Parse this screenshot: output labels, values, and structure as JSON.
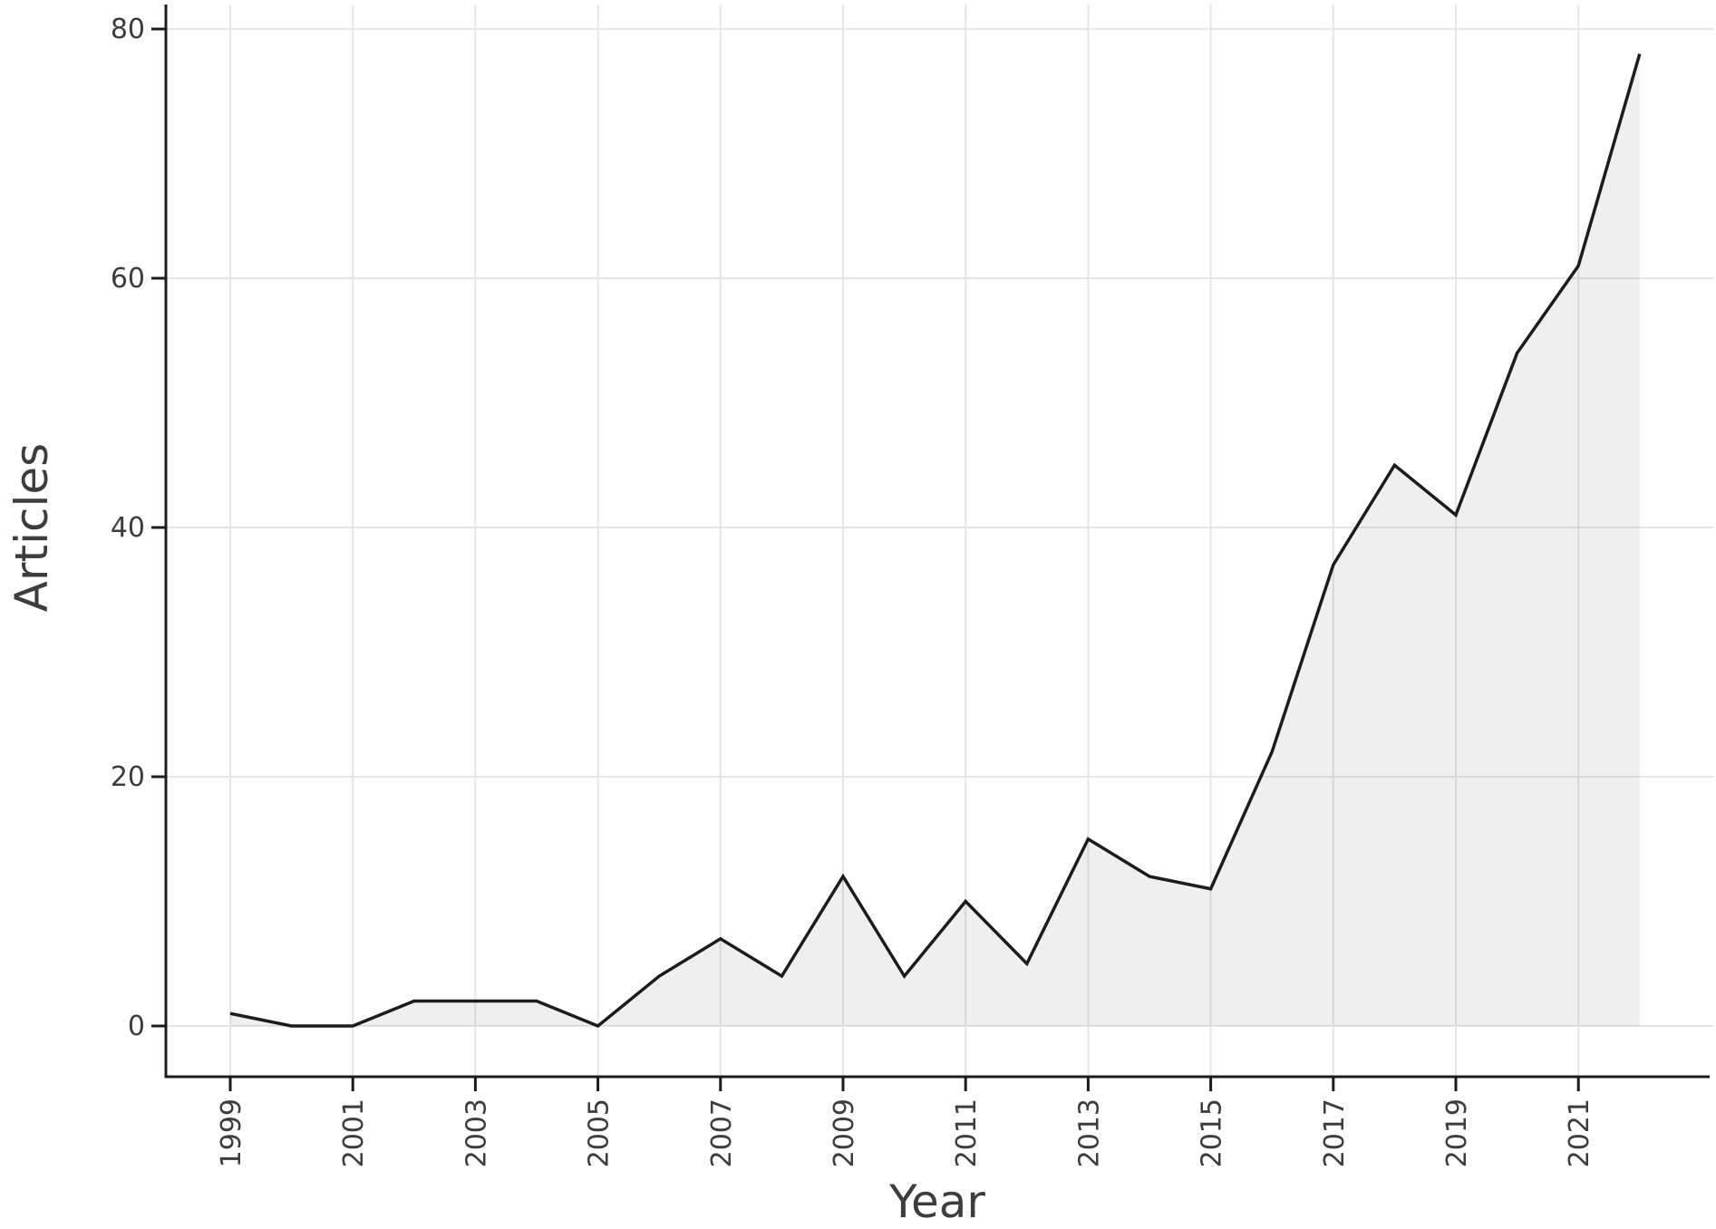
{
  "chart_data": {
    "type": "area",
    "title": "",
    "xlabel": "Year",
    "ylabel": "Articles",
    "x": [
      1999,
      2000,
      2001,
      2002,
      2003,
      2004,
      2005,
      2006,
      2007,
      2008,
      2009,
      2010,
      2011,
      2012,
      2013,
      2014,
      2015,
      2016,
      2017,
      2018,
      2019,
      2020,
      2021,
      2022
    ],
    "values": [
      1,
      0,
      0,
      2,
      2,
      2,
      0,
      4,
      7,
      4,
      12,
      4,
      10,
      5,
      15,
      12,
      11,
      22,
      37,
      45,
      41,
      54,
      61,
      78
    ],
    "x_ticks": [
      1999,
      2001,
      2003,
      2005,
      2007,
      2009,
      2011,
      2013,
      2015,
      2017,
      2019,
      2021
    ],
    "x_tick_labels": [
      "1999",
      "2001",
      "2003",
      "2005",
      "2007",
      "2009",
      "2011",
      "2013",
      "2015",
      "2017",
      "2019",
      "2021"
    ],
    "y_ticks": [
      0,
      20,
      40,
      60,
      80
    ],
    "y_tick_labels": [
      "0",
      "20",
      "40",
      "60",
      "80"
    ],
    "ylim": [
      0,
      80
    ],
    "xlim": [
      1998,
      2023
    ],
    "grid": "on",
    "legend": "none",
    "x_tick_label_rotation_deg": -90,
    "colors": {
      "line": "#1c1c1c",
      "axis": "#1c1c1c",
      "fill": "#1c1c1c",
      "fill_opacity": 0.07,
      "grid": "#e6e6e6",
      "text": "#3d3d3d",
      "background": "#ffffff"
    }
  }
}
